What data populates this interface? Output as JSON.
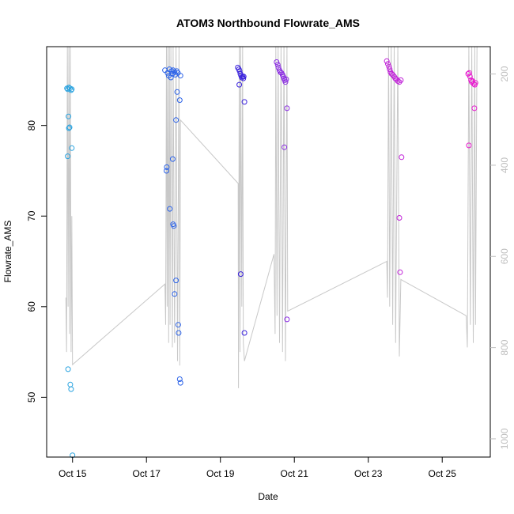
{
  "chart_data": {
    "type": "scatter",
    "title": "ATOM3 Northbound Flowrate_AMS",
    "xlabel": "Date",
    "ylabel": "Flowrate_AMS",
    "x_ticks": [
      {
        "x": 14.9,
        "label": "Oct 15"
      },
      {
        "x": 16.9,
        "label": "Oct 17"
      },
      {
        "x": 18.9,
        "label": "Oct 19"
      },
      {
        "x": 20.9,
        "label": "Oct 21"
      },
      {
        "x": 22.9,
        "label": "Oct 23"
      },
      {
        "x": 24.9,
        "label": "Oct 25"
      }
    ],
    "xlim": [
      14.2,
      26.2
    ],
    "ylim": [
      43.4,
      88.7
    ],
    "y_ticks": [
      50,
      60,
      70,
      80
    ],
    "right_axis": {
      "ylim": [
        1040,
        140
      ],
      "ticks": [
        200,
        400,
        600,
        800,
        1000
      ],
      "color": "#bfbfbf"
    },
    "series": [
      {
        "color": "#29a3e0",
        "points": [
          [
            14.75,
            84.1
          ],
          [
            14.77,
            84.0
          ],
          [
            14.8,
            84.2
          ],
          [
            14.83,
            84.1
          ],
          [
            14.86,
            83.9
          ],
          [
            14.88,
            84.0
          ],
          [
            14.79,
            81.0
          ],
          [
            14.8,
            79.7
          ],
          [
            14.82,
            79.8
          ],
          [
            14.77,
            76.6
          ],
          [
            14.88,
            77.5
          ],
          [
            14.78,
            53.1
          ],
          [
            14.84,
            51.4
          ],
          [
            14.86,
            50.9
          ],
          [
            14.9,
            43.6
          ]
        ]
      },
      {
        "color": "#2c63e8",
        "points": [
          [
            17.4,
            86.1
          ],
          [
            17.47,
            85.8
          ],
          [
            17.52,
            86.2
          ],
          [
            17.58,
            86.0
          ],
          [
            17.62,
            86.1
          ],
          [
            17.66,
            85.9
          ],
          [
            17.72,
            86.0
          ],
          [
            17.5,
            85.5
          ],
          [
            17.56,
            85.3
          ],
          [
            17.6,
            85.7
          ],
          [
            17.68,
            85.6
          ],
          [
            17.75,
            85.8
          ],
          [
            17.82,
            85.5
          ],
          [
            17.73,
            83.7
          ],
          [
            17.8,
            82.8
          ],
          [
            17.7,
            80.6
          ],
          [
            17.61,
            76.3
          ],
          [
            17.45,
            75.4
          ],
          [
            17.44,
            75.0
          ],
          [
            17.53,
            70.8
          ],
          [
            17.62,
            69.1
          ],
          [
            17.64,
            68.9
          ],
          [
            17.7,
            62.9
          ],
          [
            17.66,
            61.4
          ],
          [
            17.76,
            58.0
          ],
          [
            17.77,
            57.1
          ],
          [
            17.8,
            52.0
          ],
          [
            17.82,
            51.6
          ]
        ]
      },
      {
        "color": "#3a22dd",
        "points": [
          [
            19.37,
            86.4
          ],
          [
            19.4,
            86.2
          ],
          [
            19.42,
            86.0
          ],
          [
            19.44,
            85.7
          ],
          [
            19.46,
            85.5
          ],
          [
            19.48,
            85.3
          ],
          [
            19.5,
            85.4
          ],
          [
            19.52,
            85.2
          ],
          [
            19.53,
            85.4
          ],
          [
            19.41,
            84.5
          ],
          [
            19.55,
            82.6
          ],
          [
            19.45,
            63.6
          ],
          [
            19.55,
            57.1
          ]
        ]
      },
      {
        "color": "#8a2be2",
        "points": [
          [
            20.42,
            87.0
          ],
          [
            20.45,
            86.7
          ],
          [
            20.47,
            86.4
          ],
          [
            20.5,
            86.1
          ],
          [
            20.52,
            85.9
          ],
          [
            20.55,
            85.8
          ],
          [
            20.58,
            85.6
          ],
          [
            20.6,
            85.4
          ],
          [
            20.62,
            85.2
          ],
          [
            20.64,
            85.0
          ],
          [
            20.66,
            84.8
          ],
          [
            20.68,
            85.1
          ],
          [
            20.7,
            81.9
          ],
          [
            20.63,
            77.6
          ],
          [
            20.7,
            58.6
          ]
        ]
      },
      {
        "color": "#c020d8",
        "points": [
          [
            23.4,
            87.1
          ],
          [
            23.43,
            86.8
          ],
          [
            23.46,
            86.5
          ],
          [
            23.48,
            86.2
          ],
          [
            23.5,
            85.9
          ],
          [
            23.53,
            85.7
          ],
          [
            23.56,
            85.6
          ],
          [
            23.6,
            85.4
          ],
          [
            23.63,
            85.2
          ],
          [
            23.66,
            85.1
          ],
          [
            23.7,
            84.9
          ],
          [
            23.74,
            84.8
          ],
          [
            23.78,
            85.0
          ],
          [
            23.8,
            76.5
          ],
          [
            23.74,
            69.8
          ],
          [
            23.76,
            63.8
          ]
        ]
      },
      {
        "color": "#e81ccf",
        "points": [
          [
            25.6,
            85.7
          ],
          [
            25.63,
            85.8
          ],
          [
            25.65,
            85.4
          ],
          [
            25.68,
            85.0
          ],
          [
            25.7,
            84.8
          ],
          [
            25.72,
            84.9
          ],
          [
            25.75,
            84.6
          ],
          [
            25.78,
            84.5
          ],
          [
            25.8,
            84.7
          ],
          [
            25.77,
            81.9
          ],
          [
            25.62,
            77.8
          ]
        ]
      }
    ],
    "line_series": {
      "color": "#c8c8c8",
      "points": [
        [
          14.72,
          61.0
        ],
        [
          14.74,
          55.0
        ],
        [
          14.76,
          88.7
        ],
        [
          14.78,
          60.0
        ],
        [
          14.8,
          88.7
        ],
        [
          14.82,
          57.0
        ],
        [
          14.84,
          88.7
        ],
        [
          14.86,
          55.0
        ],
        [
          14.88,
          70.0
        ],
        [
          14.9,
          53.6
        ],
        [
          17.4,
          62.5
        ],
        [
          17.42,
          58.0
        ],
        [
          17.44,
          88.7
        ],
        [
          17.46,
          60.0
        ],
        [
          17.48,
          88.7
        ],
        [
          17.5,
          56.0
        ],
        [
          17.52,
          88.7
        ],
        [
          17.54,
          58.0
        ],
        [
          17.56,
          88.7
        ],
        [
          17.6,
          55.5
        ],
        [
          17.62,
          88.7
        ],
        [
          17.66,
          56.0
        ],
        [
          17.7,
          88.7
        ],
        [
          17.74,
          54.0
        ],
        [
          17.78,
          88.7
        ],
        [
          17.8,
          53.5
        ],
        [
          17.82,
          80.6
        ],
        [
          19.38,
          73.6
        ],
        [
          19.39,
          51.0
        ],
        [
          19.41,
          88.7
        ],
        [
          19.43,
          55.0
        ],
        [
          19.45,
          88.7
        ],
        [
          19.48,
          60.0
        ],
        [
          19.5,
          88.7
        ],
        [
          19.52,
          56.0
        ],
        [
          19.55,
          54.0
        ],
        [
          20.35,
          65.8
        ],
        [
          20.38,
          57.0
        ],
        [
          20.4,
          88.7
        ],
        [
          20.43,
          59.0
        ],
        [
          20.46,
          88.7
        ],
        [
          20.5,
          56.0
        ],
        [
          20.54,
          88.7
        ],
        [
          20.58,
          55.0
        ],
        [
          20.62,
          88.7
        ],
        [
          20.66,
          54.0
        ],
        [
          20.7,
          88.7
        ],
        [
          20.72,
          59.5
        ],
        [
          23.4,
          65.0
        ],
        [
          23.42,
          61.0
        ],
        [
          23.45,
          88.7
        ],
        [
          23.48,
          60.0
        ],
        [
          23.52,
          88.7
        ],
        [
          23.56,
          58.0
        ],
        [
          23.6,
          88.7
        ],
        [
          23.64,
          56.0
        ],
        [
          23.7,
          88.7
        ],
        [
          23.74,
          54.5
        ],
        [
          23.78,
          63.0
        ],
        [
          25.55,
          59.0
        ],
        [
          25.58,
          55.5
        ],
        [
          25.62,
          88.7
        ],
        [
          25.66,
          58.0
        ],
        [
          25.7,
          88.7
        ],
        [
          25.74,
          56.0
        ],
        [
          25.78,
          88.7
        ],
        [
          25.8,
          58.0
        ],
        [
          25.84,
          88.7
        ]
      ]
    }
  }
}
